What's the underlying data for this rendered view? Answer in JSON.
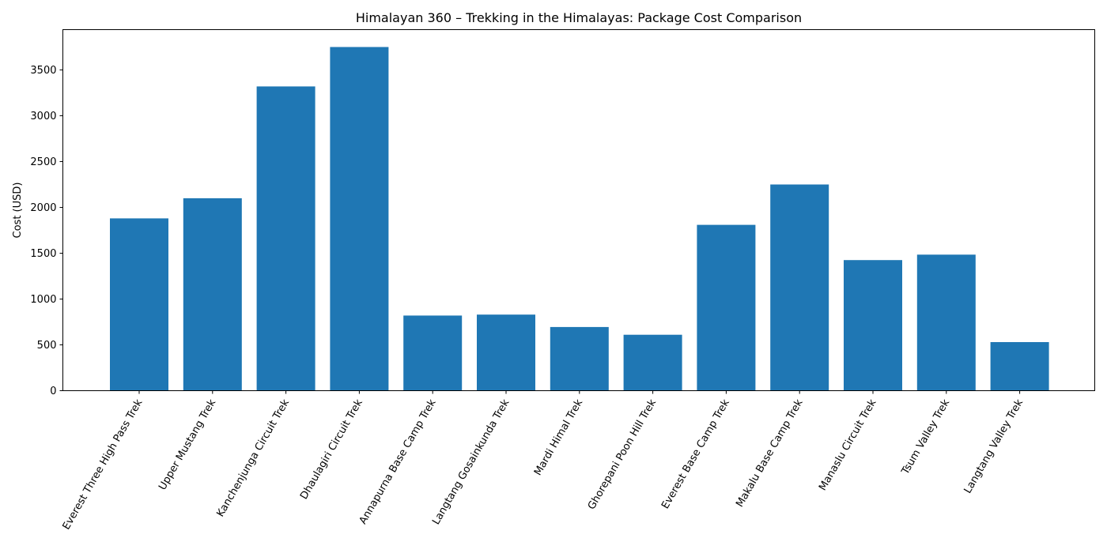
{
  "chart_data": {
    "type": "bar",
    "title": "Himalayan 360 – Trekking in the Himalayas: Package Cost Comparison",
    "xlabel": "",
    "ylabel": "Cost (USD)",
    "categories": [
      "Everest Three High Pass Trek",
      "Upper Mustang Trek",
      "Kanchenjunga Circuit Trek",
      "Dhaulagiri Circuit Trek",
      "Annapurna Base Camp Trek",
      "Langtang Gosainkunda Trek",
      "Mardi Himal Trek",
      "Ghorepani Poon Hill Trek",
      "Everest Base Camp Trek",
      "Makalu Base Camp Trek",
      "Manaslu Circuit Trek",
      "Tsum Valley Trek",
      "Langtang Valley Trek"
    ],
    "values": [
      1880,
      2100,
      3320,
      3750,
      820,
      830,
      695,
      610,
      1810,
      2250,
      1425,
      1485,
      530
    ],
    "ylim": [
      0,
      3940
    ],
    "yticks": [
      0,
      500,
      1000,
      1500,
      2000,
      2500,
      3000,
      3500
    ],
    "bar_color": "#1f77b4",
    "grid": false,
    "legend": "none"
  }
}
